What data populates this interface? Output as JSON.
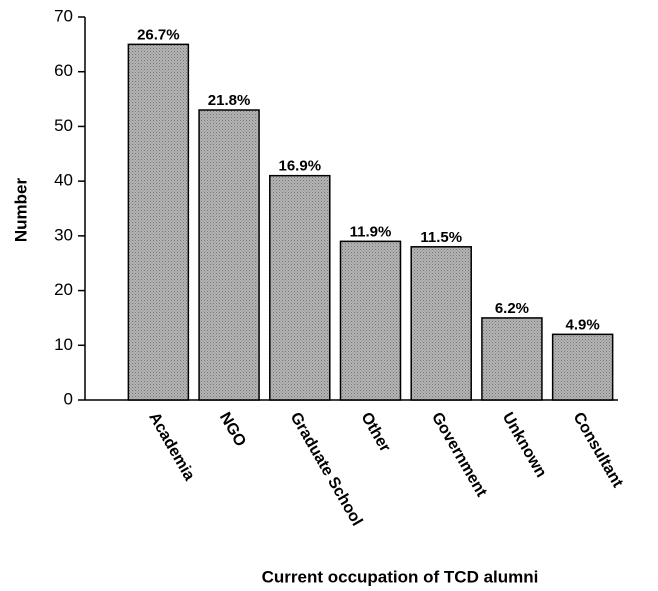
{
  "chart_data": {
    "type": "bar",
    "xlabel": "Current occupation of TCD alumni",
    "ylabel": "Number",
    "categories": [
      "Academia",
      "NGO",
      "Graduate School",
      "Other",
      "Government",
      "Unknown",
      "Consultant"
    ],
    "values": [
      65,
      53,
      41,
      29,
      28,
      15,
      12
    ],
    "annotations": [
      "26.7%",
      "21.8%",
      "16.9%",
      "11.9%",
      "11.5%",
      "6.2%",
      "4.9%"
    ],
    "color": "#ababab",
    "ylim": [
      0,
      70
    ],
    "yticks": [
      0,
      10,
      20,
      30,
      40,
      50,
      60,
      70
    ]
  }
}
